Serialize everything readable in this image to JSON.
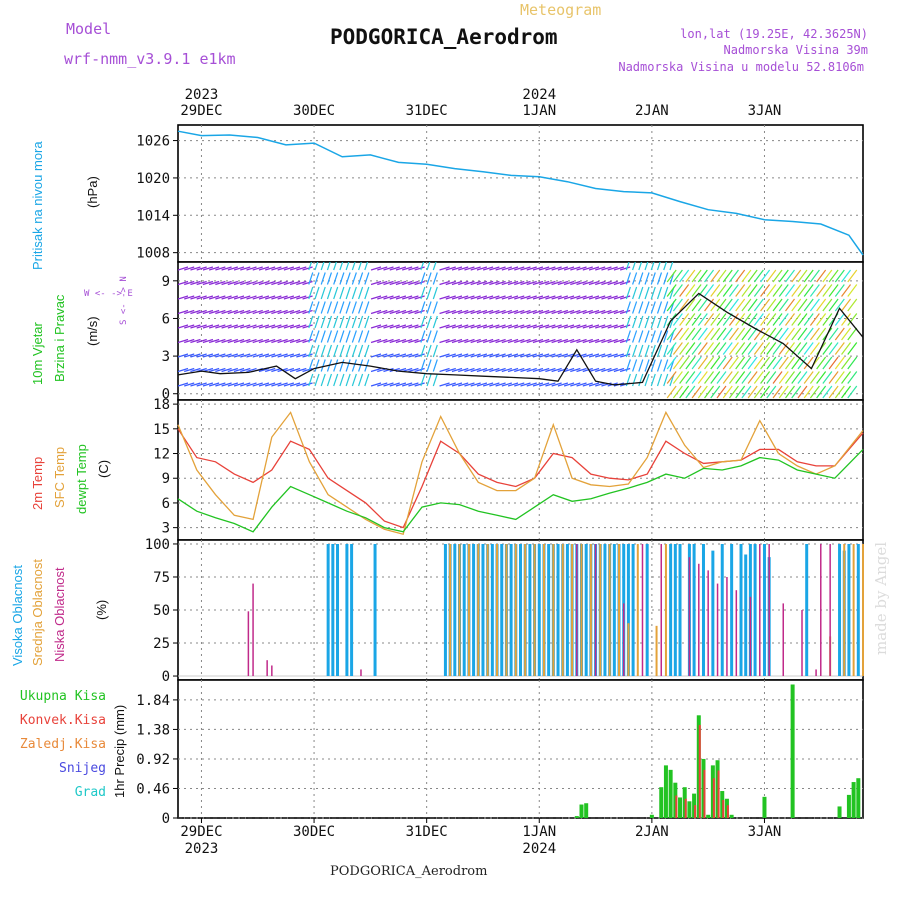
{
  "header": {
    "model_label": "Model",
    "model_name": "wrf-nmm_v3.9.1 e1km",
    "meteogram_label": "Meteogram",
    "station": "PODGORICA_Aerodrom",
    "lonlat": "lon,lat (19.25E, 42.3625N)",
    "elevation": "Nadmorska Visina 39m",
    "model_elevation": "Nadmorska Visina u modelu 52.8106m",
    "footer_station": "PODGORICA_Aerodrom",
    "watermark": "made by Angel"
  },
  "colors": {
    "pressure": "#1aa6e6",
    "wind_title": "#22c322",
    "temp2m": "#e8423a",
    "sfc_temp": "#e3a23a",
    "dewpt": "#22c322",
    "high_cloud": "#1aa6e6",
    "mid_cloud": "#e3a23a",
    "low_cloud": "#c02a8a",
    "precip_total": "#22c322",
    "precip_conv": "#e8423a",
    "precip_frozen": "#e88a3a",
    "snow": "#4a4ae0",
    "graupel": "#1ec8c8"
  },
  "time_axis": {
    "top_year_labels": [
      {
        "day_index": 0,
        "text": "2023"
      },
      {
        "day_index": 3,
        "text": "2024"
      }
    ],
    "day_labels": [
      "29DEC",
      "30DEC",
      "31DEC",
      "1JAN",
      "2JAN",
      "3JAN"
    ],
    "bottom_year_labels": [
      {
        "day_index": 0,
        "text": "2023"
      },
      {
        "day_index": 3,
        "text": "2024"
      }
    ]
  },
  "chart_data": [
    {
      "type": "line",
      "panel": "pressure",
      "ylabel_colored": "Pritisak na nivou mora",
      "ylabel_unit": "(hPa)",
      "yticks": [
        1008,
        1014,
        1020,
        1026
      ],
      "ylim": [
        1006.5,
        1028.5
      ],
      "x_hours": [
        -5,
        0,
        6,
        12,
        18,
        24,
        30,
        36,
        42,
        48,
        54,
        60,
        66,
        72,
        78,
        84,
        90,
        96,
        102,
        108,
        114,
        120,
        126,
        132,
        138,
        141
      ],
      "series": [
        {
          "values": [
            1027.5,
            1026.8,
            1026.9,
            1026.5,
            1025.3,
            1025.6,
            1023.4,
            1023.7,
            1022.5,
            1022.2,
            1021.5,
            1021.0,
            1020.4,
            1020.2,
            1019.4,
            1018.3,
            1017.8,
            1017.6,
            1016.2,
            1014.9,
            1014.3,
            1013.3,
            1013.0,
            1012.6,
            1010.8,
            1007.6
          ]
        }
      ]
    },
    {
      "type": "line",
      "panel": "wind",
      "ylabel_colored_1": "10m Vjetar",
      "ylabel_colored_2": "Brzina i Pravac",
      "ylabel_unit": "(m/s)",
      "compass_label": "W <- -> E",
      "compass_vertical": "S <- -> N",
      "yticks": [
        0,
        3,
        6,
        9
      ],
      "ylim": [
        -0.5,
        10.5
      ],
      "x_hours": [
        -5,
        0,
        4,
        10,
        16,
        20,
        24,
        30,
        36,
        42,
        48,
        54,
        60,
        66,
        72,
        76,
        80,
        84,
        88,
        94,
        100,
        106,
        112,
        118,
        124,
        130,
        136,
        141
      ],
      "series": [
        {
          "values": [
            1.5,
            1.8,
            1.6,
            1.7,
            2.2,
            1.2,
            2.0,
            2.5,
            2.2,
            1.8,
            1.6,
            1.5,
            1.4,
            1.3,
            1.2,
            1.0,
            3.5,
            1.0,
            0.7,
            0.9,
            5.8,
            8.0,
            6.5,
            5.2,
            4.0,
            2.0,
            6.8,
            4.5
          ]
        }
      ]
    },
    {
      "type": "line",
      "panel": "temperature",
      "ylabel_colored_1": "2m Temp",
      "ylabel_colored_2": "SFC Temp",
      "ylabel_colored_3": "dewpt Temp",
      "ylabel_unit": "(C)",
      "yticks": [
        3,
        6,
        9,
        12,
        15,
        18
      ],
      "ylim": [
        1.5,
        18.5
      ],
      "x_hours": [
        -5,
        -1,
        3,
        7,
        11,
        15,
        19,
        23,
        27,
        31,
        35,
        39,
        43,
        47,
        51,
        55,
        59,
        63,
        67,
        71,
        75,
        79,
        83,
        87,
        91,
        95,
        99,
        103,
        107,
        111,
        115,
        119,
        123,
        127,
        131,
        135,
        141
      ],
      "series": [
        {
          "name": "2m Temp",
          "values": [
            15.0,
            11.5,
            11.0,
            9.5,
            8.5,
            10.0,
            13.5,
            12.5,
            9.0,
            7.5,
            6.0,
            3.8,
            3.0,
            8.0,
            13.5,
            12.0,
            9.5,
            8.5,
            8.0,
            9.0,
            12.0,
            11.5,
            9.5,
            9.0,
            8.8,
            9.5,
            13.5,
            12.0,
            10.8,
            11.0,
            11.2,
            12.5,
            12.5,
            11.0,
            10.5,
            10.5,
            14.5
          ]
        },
        {
          "name": "SFC Temp",
          "values": [
            15.5,
            10.0,
            7.0,
            4.5,
            4.0,
            14.0,
            17.0,
            11.0,
            7.0,
            5.5,
            4.0,
            2.8,
            2.2,
            11.0,
            16.5,
            12.0,
            8.5,
            7.5,
            7.5,
            9.0,
            15.5,
            9.0,
            8.2,
            8.0,
            8.3,
            11.5,
            17.0,
            13.0,
            10.3,
            11.0,
            11.2,
            16.0,
            12.0,
            10.5,
            9.5,
            10.5,
            14.8
          ]
        },
        {
          "name": "dewpt Temp",
          "values": [
            6.5,
            5.0,
            4.2,
            3.5,
            2.5,
            5.5,
            8.0,
            7.0,
            6.0,
            5.0,
            4.2,
            3.0,
            2.5,
            5.5,
            6.0,
            5.8,
            5.0,
            4.5,
            4.0,
            5.5,
            7.0,
            6.2,
            6.5,
            7.2,
            7.8,
            8.5,
            9.5,
            9.0,
            10.2,
            10.0,
            10.5,
            11.5,
            11.2,
            10.0,
            9.5,
            9.0,
            12.5
          ]
        }
      ]
    },
    {
      "type": "bar",
      "panel": "cloud_cover",
      "ylabel_colored_1": "Visoka Oblacnost",
      "ylabel_colored_2": "Srednja Oblacnost",
      "ylabel_colored_3": "Niska Oblacnost",
      "ylabel_unit": "(%)",
      "yticks": [
        0,
        25,
        50,
        75,
        100
      ],
      "ylim": [
        -3,
        103
      ],
      "series": [
        {
          "name": "Visoka Oblacnost",
          "x_hours": [
            27,
            28,
            29,
            31,
            32,
            37,
            52,
            53,
            54,
            55,
            56,
            57,
            58,
            59,
            60,
            61,
            62,
            63,
            64,
            65,
            66,
            67,
            68,
            69,
            70,
            71,
            72,
            73,
            74,
            75,
            76,
            77,
            78,
            79,
            80,
            81,
            82,
            83,
            84,
            85,
            86,
            87,
            88,
            89,
            90,
            91,
            92,
            95,
            100,
            101,
            102,
            104,
            105,
            107,
            109,
            111,
            113,
            115,
            116,
            117,
            118,
            120,
            121,
            129,
            136,
            137,
            138,
            140
          ],
          "values": [
            100,
            100,
            100,
            100,
            100,
            100,
            100,
            100,
            100,
            100,
            100,
            100,
            100,
            100,
            100,
            100,
            100,
            100,
            100,
            100,
            100,
            100,
            100,
            100,
            100,
            100,
            100,
            100,
            100,
            100,
            100,
            100,
            100,
            100,
            100,
            100,
            100,
            100,
            100,
            100,
            100,
            100,
            100,
            100,
            100,
            100,
            100,
            100,
            100,
            100,
            100,
            100,
            100,
            100,
            95,
            100,
            100,
            100,
            92,
            100,
            100,
            100,
            90,
            100,
            100,
            95,
            100,
            100
          ]
        },
        {
          "name": "Srednja Oblacnost",
          "x_hours": [
            53,
            55,
            57,
            59,
            61,
            63,
            65,
            67,
            69,
            71,
            73,
            75,
            77,
            79,
            81,
            83,
            85,
            87,
            89,
            91,
            93,
            97,
            99,
            134,
            137,
            139,
            141
          ],
          "values": [
            100,
            100,
            100,
            100,
            100,
            100,
            100,
            100,
            100,
            100,
            100,
            100,
            100,
            100,
            100,
            100,
            100,
            100,
            100,
            40,
            100,
            38,
            100,
            30,
            100,
            100,
            100
          ]
        },
        {
          "name": "Niska Oblacnost",
          "x_hours": [
            10,
            11,
            14,
            15,
            34,
            80,
            84,
            90,
            94,
            98,
            104,
            106,
            108,
            110,
            112,
            114,
            117,
            119,
            121,
            124,
            128,
            131,
            132,
            134
          ],
          "values": [
            49,
            70,
            12,
            8,
            5,
            100,
            100,
            55,
            100,
            100,
            90,
            85,
            80,
            70,
            75,
            65,
            60,
            100,
            100,
            55,
            50,
            5,
            100,
            100
          ]
        }
      ]
    },
    {
      "type": "bar",
      "panel": "precipitation",
      "legend": [
        "Ukupna Kisa",
        "Konvek.Kisa",
        "Zaledj.Kisa",
        "Snijeg",
        "Grad"
      ],
      "ylabel_unit": "1hr Precip (mm)",
      "yticks": [
        0,
        0.46,
        0.92,
        1.38,
        1.84
      ],
      "ylim": [
        0,
        2.15
      ],
      "series": [
        {
          "name": "Ukupna Kisa",
          "x_hours": [
            80,
            81,
            82,
            96,
            98,
            99,
            100,
            101,
            102,
            103,
            104,
            105,
            106,
            107,
            108,
            109,
            110,
            111,
            112,
            113,
            120,
            126,
            136,
            138,
            139,
            140
          ],
          "values": [
            0.03,
            0.21,
            0.23,
            0.05,
            0.48,
            0.82,
            0.75,
            0.55,
            0.32,
            0.48,
            0.26,
            0.38,
            1.6,
            0.92,
            0.05,
            0.82,
            0.9,
            0.42,
            0.3,
            0.05,
            0.33,
            2.08,
            0.18,
            0.36,
            0.56,
            0.62
          ]
        },
        {
          "name": "Konvek.Kisa",
          "x_hours": [
            101,
            103,
            105,
            106,
            107,
            109,
            110,
            111,
            112
          ],
          "values": [
            0.35,
            0.3,
            0.2,
            1.45,
            0.75,
            0.62,
            0.74,
            0.28,
            0.2
          ]
        }
      ]
    }
  ]
}
